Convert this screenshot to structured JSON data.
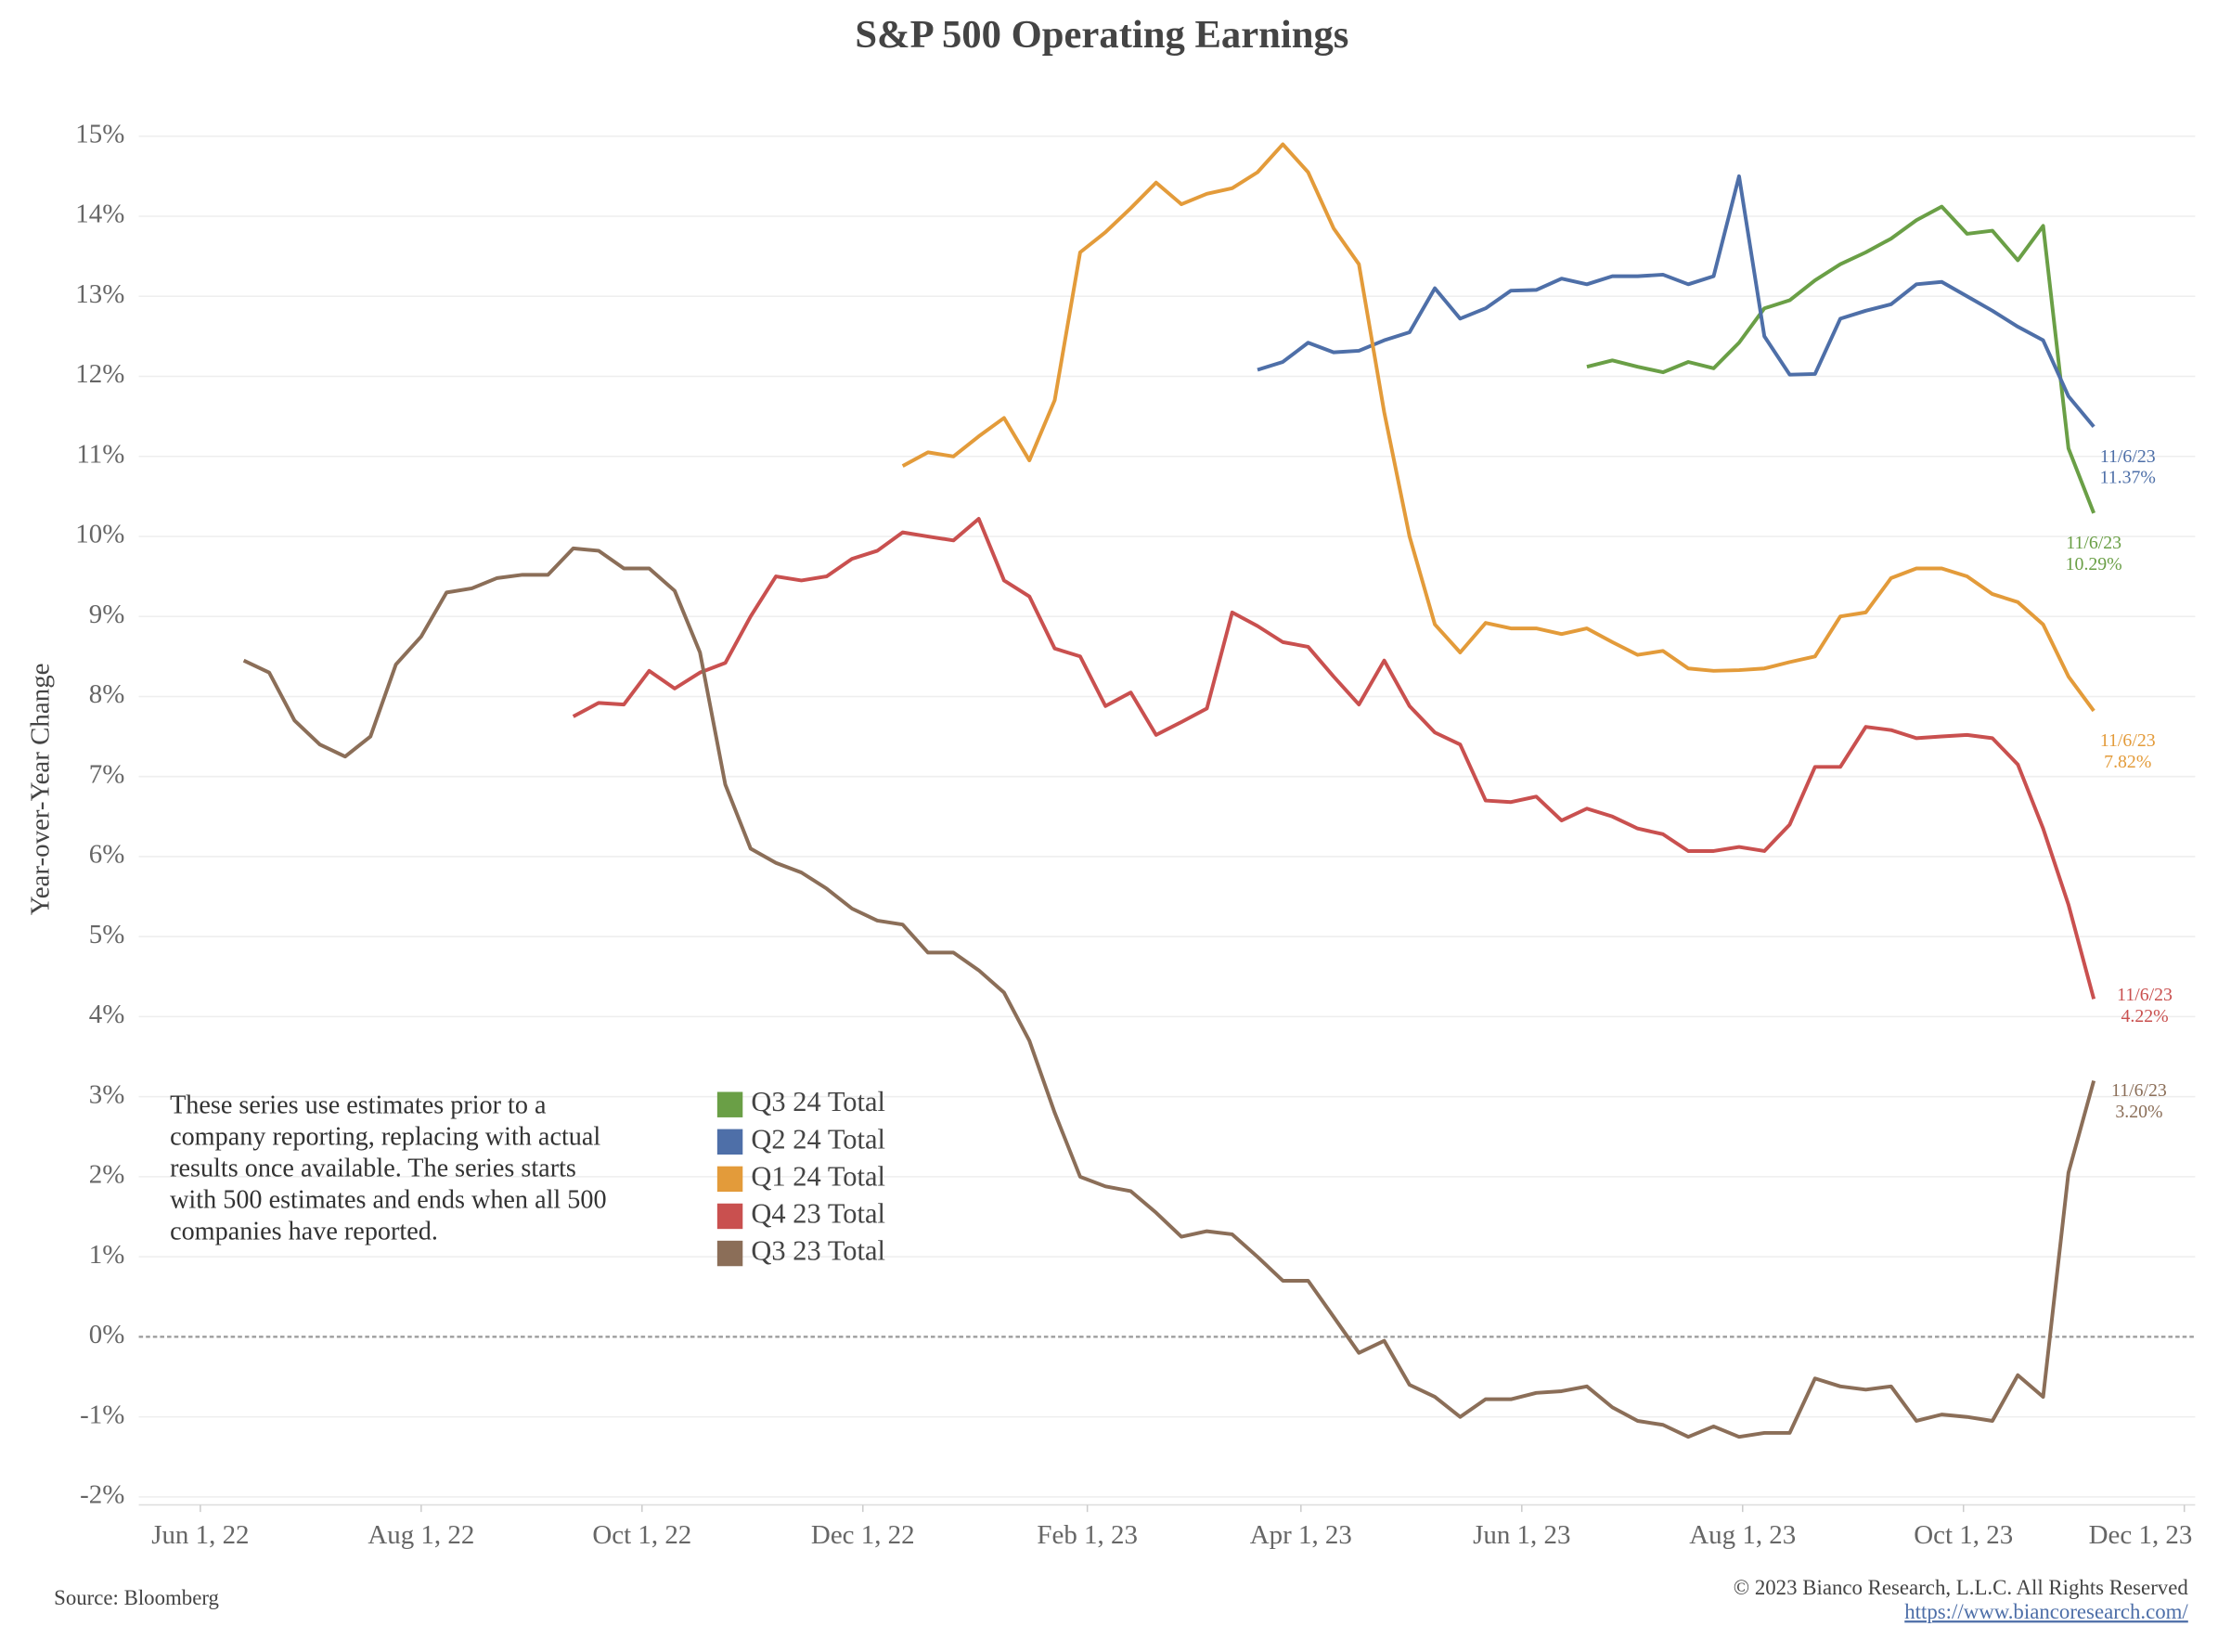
{
  "chart_data": {
    "type": "line",
    "title": "S&P 500 Operating Earnings",
    "y_label": "Year-over-Year Change",
    "note": [
      "These series use estimates prior to a",
      "company reporting, replacing with actual",
      "results once available. The series starts",
      "with 500 estimates and ends when all 500",
      "companies have reported."
    ],
    "source": "Source: Bloomberg",
    "copyright": "© 2023 Bianco Research, L.L.C. All Rights Reserved",
    "url": "https://www.biancoresearch.com/",
    "grid": true,
    "xlim": [
      "2022-05-15",
      "2023-12-04"
    ],
    "xticks": [
      {
        "value": "2022-06-01",
        "label": "Jun 1, 22"
      },
      {
        "value": "2022-08-01",
        "label": "Aug 1, 22"
      },
      {
        "value": "2022-10-01",
        "label": "Oct 1, 22"
      },
      {
        "value": "2022-12-01",
        "label": "Dec 1, 22"
      },
      {
        "value": "2023-02-01",
        "label": "Feb 1, 23"
      },
      {
        "value": "2023-04-01",
        "label": "Apr 1, 23"
      },
      {
        "value": "2023-06-01",
        "label": "Jun 1, 23"
      },
      {
        "value": "2023-08-01",
        "label": "Aug 1, 23"
      },
      {
        "value": "2023-10-01",
        "label": "Oct 1, 23"
      },
      {
        "value": "2023-12-01",
        "label": "Dec 1, 23"
      }
    ],
    "ylim": [
      -2.1,
      15.5
    ],
    "yticks": [
      {
        "value": -2,
        "label": "-2%"
      },
      {
        "value": -1,
        "label": "-1%"
      },
      {
        "value": 0,
        "label": "0%"
      },
      {
        "value": 1,
        "label": "1%"
      },
      {
        "value": 2,
        "label": "2%"
      },
      {
        "value": 3,
        "label": "3%"
      },
      {
        "value": 4,
        "label": "4%"
      },
      {
        "value": 5,
        "label": "5%"
      },
      {
        "value": 6,
        "label": "6%"
      },
      {
        "value": 7,
        "label": "7%"
      },
      {
        "value": 8,
        "label": "8%"
      },
      {
        "value": 9,
        "label": "9%"
      },
      {
        "value": 10,
        "label": "10%"
      },
      {
        "value": 11,
        "label": "11%"
      },
      {
        "value": 12,
        "label": "12%"
      },
      {
        "value": 13,
        "label": "13%"
      },
      {
        "value": 14,
        "label": "14%"
      },
      {
        "value": 15,
        "label": "15%"
      }
    ],
    "x": [
      "2022-06-13",
      "2022-06-20",
      "2022-06-27",
      "2022-07-04",
      "2022-07-11",
      "2022-07-18",
      "2022-07-25",
      "2022-08-01",
      "2022-08-08",
      "2022-08-15",
      "2022-08-22",
      "2022-08-29",
      "2022-09-05",
      "2022-09-12",
      "2022-09-19",
      "2022-09-26",
      "2022-10-03",
      "2022-10-10",
      "2022-10-17",
      "2022-10-24",
      "2022-10-31",
      "2022-11-07",
      "2022-11-14",
      "2022-11-21",
      "2022-11-28",
      "2022-12-05",
      "2022-12-12",
      "2022-12-19",
      "2022-12-26",
      "2023-01-02",
      "2023-01-09",
      "2023-01-16",
      "2023-01-23",
      "2023-01-30",
      "2023-02-06",
      "2023-02-13",
      "2023-02-20",
      "2023-02-27",
      "2023-03-06",
      "2023-03-13",
      "2023-03-20",
      "2023-03-27",
      "2023-04-03",
      "2023-04-10",
      "2023-04-17",
      "2023-04-24",
      "2023-05-01",
      "2023-05-08",
      "2023-05-15",
      "2023-05-22",
      "2023-05-29",
      "2023-06-05",
      "2023-06-12",
      "2023-06-19",
      "2023-06-26",
      "2023-07-03",
      "2023-07-10",
      "2023-07-17",
      "2023-07-24",
      "2023-07-31",
      "2023-08-07",
      "2023-08-14",
      "2023-08-21",
      "2023-08-28",
      "2023-09-04",
      "2023-09-11",
      "2023-09-18",
      "2023-09-25",
      "2023-10-02",
      "2023-10-09",
      "2023-10-16",
      "2023-10-23",
      "2023-10-30",
      "2023-11-06"
    ],
    "series": [
      {
        "name": "Q3 24 Total",
        "color": "#6a9f46",
        "end_label": {
          "date": "11/6/23",
          "value": "10.29%"
        },
        "values": [
          null,
          null,
          null,
          null,
          null,
          null,
          null,
          null,
          null,
          null,
          null,
          null,
          null,
          null,
          null,
          null,
          null,
          null,
          null,
          null,
          null,
          null,
          null,
          null,
          null,
          null,
          null,
          null,
          null,
          null,
          null,
          null,
          null,
          null,
          null,
          null,
          null,
          null,
          null,
          null,
          null,
          null,
          null,
          null,
          null,
          null,
          null,
          null,
          null,
          null,
          null,
          null,
          null,
          12.12,
          12.2,
          12.12,
          12.05,
          12.18,
          12.1,
          12.42,
          12.85,
          12.95,
          13.2,
          13.4,
          13.55,
          13.72,
          13.95,
          14.12,
          13.78,
          13.82,
          13.45,
          13.88,
          11.1,
          10.29
        ]
      },
      {
        "name": "Q2 24 Total",
        "color": "#4e6fa8",
        "end_label": {
          "date": "11/6/23",
          "value": "11.37%"
        },
        "values": [
          null,
          null,
          null,
          null,
          null,
          null,
          null,
          null,
          null,
          null,
          null,
          null,
          null,
          null,
          null,
          null,
          null,
          null,
          null,
          null,
          null,
          null,
          null,
          null,
          null,
          null,
          null,
          null,
          null,
          null,
          null,
          null,
          null,
          null,
          null,
          null,
          null,
          null,
          null,
          null,
          12.08,
          12.18,
          12.42,
          12.3,
          12.32,
          12.45,
          12.55,
          13.1,
          12.72,
          12.85,
          13.07,
          13.08,
          13.22,
          13.15,
          13.25,
          13.25,
          13.27,
          13.15,
          13.25,
          14.5,
          12.5,
          12.02,
          12.03,
          12.72,
          12.82,
          12.9,
          13.15,
          13.18,
          13.0,
          12.82,
          12.62,
          12.45,
          11.75,
          11.37
        ]
      },
      {
        "name": "Q1 24 Total",
        "color": "#e39b3a",
        "end_label": {
          "date": "11/6/23",
          "value": "7.82%"
        },
        "values": [
          null,
          null,
          null,
          null,
          null,
          null,
          null,
          null,
          null,
          null,
          null,
          null,
          null,
          null,
          null,
          null,
          null,
          null,
          null,
          null,
          null,
          null,
          null,
          null,
          null,
          null,
          10.88,
          11.05,
          11.0,
          11.25,
          11.48,
          10.95,
          11.7,
          13.55,
          13.8,
          14.1,
          14.42,
          14.15,
          14.28,
          14.35,
          14.55,
          14.9,
          14.55,
          13.85,
          13.4,
          11.55,
          10.0,
          8.9,
          8.55,
          8.92,
          8.85,
          8.85,
          8.78,
          8.85,
          8.68,
          8.52,
          8.57,
          8.35,
          8.32,
          8.33,
          8.35,
          8.43,
          8.5,
          9.0,
          9.05,
          9.48,
          9.6,
          9.6,
          9.5,
          9.28,
          9.18,
          8.9,
          8.25,
          7.82
        ]
      },
      {
        "name": "Q4 23 Total",
        "color": "#c9504f",
        "end_label": {
          "date": "11/6/23",
          "value": "4.22%"
        },
        "values": [
          null,
          null,
          null,
          null,
          null,
          null,
          null,
          null,
          null,
          null,
          null,
          null,
          null,
          7.75,
          7.92,
          7.9,
          8.32,
          8.1,
          8.3,
          8.42,
          9.0,
          9.5,
          9.45,
          9.5,
          9.72,
          9.82,
          10.05,
          10.0,
          9.95,
          10.22,
          9.45,
          9.25,
          8.6,
          8.5,
          7.88,
          8.05,
          7.52,
          7.68,
          7.85,
          9.05,
          8.88,
          8.68,
          8.62,
          8.25,
          7.9,
          8.45,
          7.88,
          7.55,
          7.4,
          6.7,
          6.68,
          6.75,
          6.45,
          6.6,
          6.5,
          6.35,
          6.28,
          6.07,
          6.07,
          6.12,
          6.07,
          6.4,
          7.12,
          7.12,
          7.62,
          7.58,
          7.48,
          7.5,
          7.52,
          7.48,
          7.15,
          6.35,
          5.4,
          4.22
        ]
      },
      {
        "name": "Q3 23 Total",
        "color": "#8b6e58",
        "end_label": {
          "date": "11/6/23",
          "value": "3.20%"
        },
        "values": [
          8.45,
          8.3,
          7.7,
          7.4,
          7.25,
          7.5,
          8.4,
          8.75,
          9.3,
          9.35,
          9.48,
          9.52,
          9.52,
          9.85,
          9.82,
          9.6,
          9.6,
          9.32,
          8.55,
          6.9,
          6.1,
          5.92,
          5.8,
          5.6,
          5.35,
          5.2,
          5.15,
          4.8,
          4.8,
          4.58,
          4.3,
          3.7,
          2.8,
          2.0,
          1.88,
          1.82,
          1.55,
          1.25,
          1.32,
          1.28,
          1.0,
          0.7,
          0.7,
          0.25,
          -0.2,
          -0.05,
          -0.6,
          -0.75,
          -1.0,
          -0.78,
          -0.78,
          -0.7,
          -0.68,
          -0.62,
          -0.88,
          -1.05,
          -1.1,
          -1.25,
          -1.12,
          -1.25,
          -1.2,
          -1.2,
          -0.52,
          -0.62,
          -0.66,
          -0.62,
          -1.05,
          -0.97,
          -1.0,
          -1.05,
          -0.48,
          -0.75,
          2.05,
          3.2
        ]
      }
    ]
  }
}
